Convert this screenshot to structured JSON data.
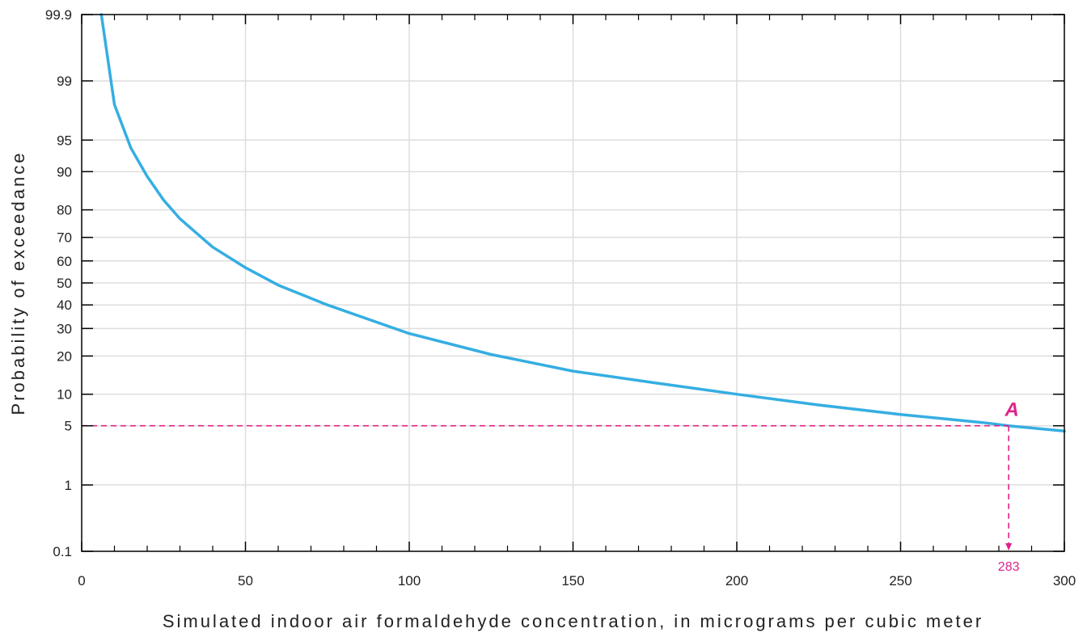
{
  "chart_data": {
    "type": "line",
    "title": "",
    "xlabel": "Simulated indoor air formaldehyde concentration, in micrograms per cubic meter",
    "ylabel": "Probability of exceedance",
    "xlim": [
      0,
      300
    ],
    "ylim": [
      0.1,
      99.9
    ],
    "y_scale": "probability",
    "grid": true,
    "x_ticks": [
      0,
      50,
      100,
      150,
      200,
      250,
      300
    ],
    "y_ticks": [
      0.1,
      1,
      5,
      10,
      20,
      30,
      40,
      50,
      60,
      70,
      80,
      90,
      95,
      99,
      99.9
    ],
    "series": [
      {
        "color": "#35aee2",
        "x": [
          6,
          10,
          15,
          20,
          25,
          30,
          40,
          50,
          60,
          75,
          100,
          125,
          150,
          175,
          200,
          225,
          250,
          275,
          283,
          300
        ],
        "y": [
          99.9,
          98.0,
          94.0,
          89.0,
          83.0,
          77.0,
          66.0,
          57.0,
          49.0,
          40.0,
          28.0,
          20.5,
          15.5,
          12.5,
          10.0,
          8.0,
          6.5,
          5.4,
          5.0,
          4.4
        ]
      }
    ],
    "annotations": [
      {
        "label": "A",
        "x": 283,
        "y": 5,
        "color": "#e0218a"
      },
      {
        "label": "283",
        "x": 283,
        "y": 0.1,
        "color": "#e0218a"
      }
    ]
  }
}
